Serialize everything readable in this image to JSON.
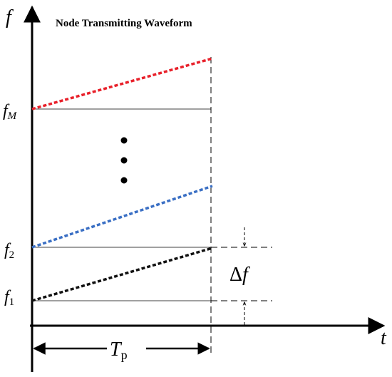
{
  "title": "Node Transmitting Waveform",
  "axes": {
    "y_label": "f",
    "x_label": "t"
  },
  "frequency_labels": {
    "fM_base": "f",
    "fM_sub": "M",
    "f2_base": "f",
    "f2_sub": "2",
    "f1_base": "f",
    "f1_sub": "1"
  },
  "delta_f": {
    "delta": "Δ",
    "f": "f"
  },
  "period": {
    "base": "T",
    "sub": "p"
  },
  "colors": {
    "fM_chirp": "#e8202a",
    "f2_chirp": "#3a6fc4",
    "f1_chirp": "#111111",
    "axis": "#000000",
    "guide": "#000000"
  }
}
